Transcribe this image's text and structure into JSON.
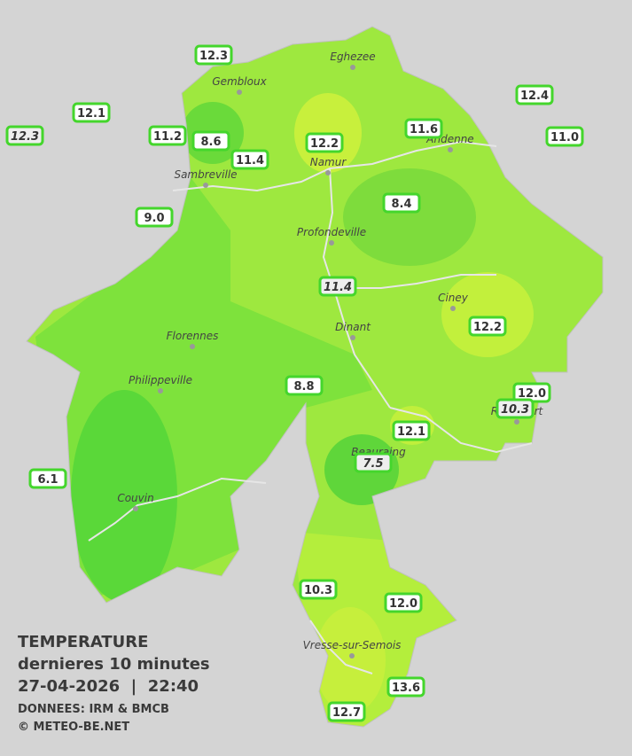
{
  "legend": {
    "title": "TEMPERATURE",
    "subtitle": "dernieres 10 minutes",
    "datetime": "27-04-2026  |  22:40",
    "source": "DONNEES: IRM & BMCB",
    "credit": "© METEO-BE.NET"
  },
  "cities": [
    "Eghezee",
    "Gembloux",
    "Andenne",
    "Namur",
    "Sambreville",
    "Profondeville",
    "Ciney",
    "Dinant",
    "Florennes",
    "Philippeville",
    "Rochefort",
    "Beauraing",
    "Couvin",
    "Vresse-sur-Semois"
  ],
  "stations": [
    "12.3",
    "12.1",
    "12.3",
    "11.2",
    "8.6",
    "11.4",
    "12.2",
    "11.6",
    "12.4",
    "11.0",
    "9.0",
    "8.4",
    "11.4",
    "12.2",
    "8.8",
    "12.0",
    "10.3",
    "12.1",
    "7.5",
    "6.1",
    "10.3",
    "12.0",
    "13.6",
    "12.7"
  ]
}
